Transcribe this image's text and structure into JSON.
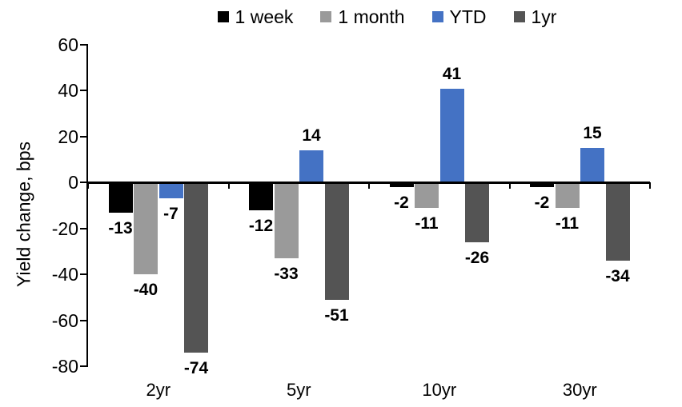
{
  "chart_data": {
    "type": "bar",
    "title": "",
    "xlabel": "",
    "ylabel": "Yield change, bps",
    "categories": [
      "2yr",
      "5yr",
      "10yr",
      "30yr"
    ],
    "series": [
      {
        "name": "1 week",
        "color": "#000000",
        "values": [
          -13,
          -12,
          -2,
          -2
        ]
      },
      {
        "name": "1 month",
        "color": "#9A9A9A",
        "values": [
          -40,
          -33,
          -11,
          -11
        ]
      },
      {
        "name": "YTD",
        "color": "#4472C4",
        "values": [
          -7,
          14,
          41,
          15
        ]
      },
      {
        "name": "1yr",
        "color": "#545454",
        "values": [
          -74,
          -51,
          -26,
          -34
        ]
      }
    ],
    "yticks": [
      60,
      40,
      20,
      0,
      -20,
      -40,
      -60,
      -80
    ],
    "ylim": [
      -80,
      60
    ],
    "grid": false,
    "legend_position": "top",
    "data_labels": true,
    "axis_color": "#000000",
    "background_color": "#FFFFFF"
  }
}
